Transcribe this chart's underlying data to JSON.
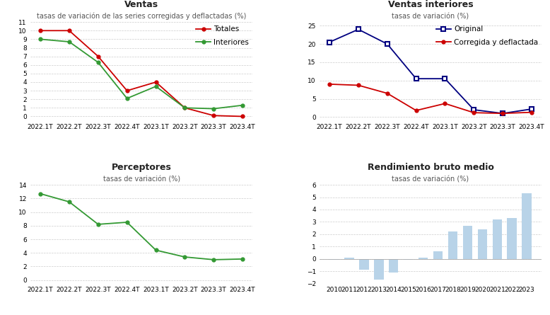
{
  "ventas_x": [
    "2022.1T",
    "2022.2T",
    "2022.3T",
    "2022.4T",
    "2023.1T",
    "2023.2T",
    "2023.3T",
    "2023.4T"
  ],
  "ventas_totales": [
    10.0,
    10.0,
    7.0,
    3.0,
    4.0,
    1.0,
    0.1,
    0.0
  ],
  "ventas_interiores_line1": [
    9.0,
    8.7,
    6.3,
    2.1,
    3.5,
    1.0,
    0.9,
    1.3
  ],
  "ventas_title": "Ventas",
  "ventas_subtitle": "tasas de variación de las series corregidas y deflactadas (%)",
  "ventas_legend1": "Totales",
  "ventas_legend2": "Interiores",
  "ventas_color1": "#cc0000",
  "ventas_color2": "#339933",
  "ventas_ylim": [
    -0.5,
    11
  ],
  "ventas_yticks": [
    0,
    1,
    2,
    3,
    4,
    5,
    6,
    7,
    8,
    9,
    10,
    11
  ],
  "vi_x": [
    "2022.1T",
    "2022.2T",
    "2022.3T",
    "2022.4T",
    "2023.1T",
    "2023.2T",
    "2023.3T",
    "2023.4T"
  ],
  "vi_original": [
    20.5,
    24.0,
    20.0,
    10.5,
    10.5,
    2.0,
    1.0,
    2.2
  ],
  "vi_corregida": [
    9.0,
    8.7,
    6.5,
    1.8,
    3.7,
    1.2,
    1.0,
    1.3
  ],
  "vi_title": "Ventas interiores",
  "vi_subtitle": "tasas de variación (%)",
  "vi_legend1": "Original",
  "vi_legend2": "Corregida y deflactada",
  "vi_color1": "#000080",
  "vi_color2": "#cc0000",
  "vi_ylim": [
    -1,
    26
  ],
  "vi_yticks": [
    0,
    5,
    10,
    15,
    20,
    25
  ],
  "perc_x": [
    "2022.1T",
    "2022.2T",
    "2022.3T",
    "2022.4T",
    "2023.1T",
    "2023.2T",
    "2023.3T",
    "2023.4T"
  ],
  "perc_y": [
    12.7,
    11.5,
    8.2,
    8.5,
    4.4,
    3.4,
    3.0,
    3.1
  ],
  "perc_title": "Perceptores",
  "perc_subtitle": "tasas de variación (%)",
  "perc_color": "#339933",
  "perc_ylim": [
    -0.5,
    14
  ],
  "perc_yticks": [
    0,
    2,
    4,
    6,
    8,
    10,
    12,
    14
  ],
  "rend_x": [
    "2010",
    "2011",
    "2012",
    "2013",
    "2014",
    "2015",
    "2016",
    "2017",
    "2018",
    "2019",
    "2020",
    "2021",
    "2022",
    "2023"
  ],
  "rend_y": [
    -0.1,
    0.1,
    -0.9,
    -1.7,
    -1.1,
    -0.1,
    0.1,
    0.6,
    2.2,
    2.7,
    2.4,
    3.2,
    3.3,
    5.3
  ],
  "rend_title": "Rendimiento bruto medio",
  "rend_subtitle": "tasas de variación (%)",
  "rend_color": "#b8d3e8",
  "rend_ylim": [
    -2,
    6
  ],
  "rend_yticks": [
    -2,
    -1,
    0,
    1,
    2,
    3,
    4,
    5,
    6
  ],
  "bg_color": "#ffffff",
  "grid_color": "#cccccc",
  "title_fontsize": 9,
  "subtitle_fontsize": 7,
  "tick_fontsize": 6.5,
  "legend_fontsize": 7.5
}
